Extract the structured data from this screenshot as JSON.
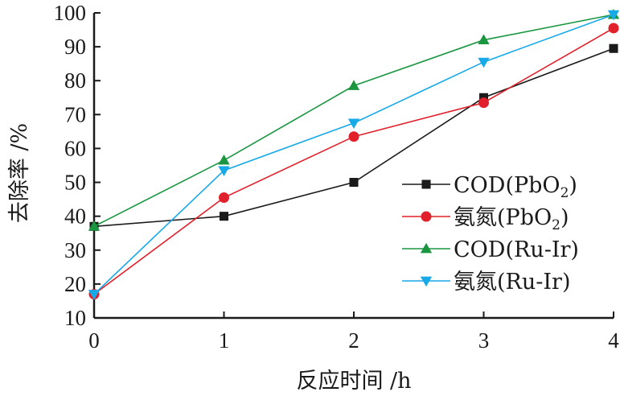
{
  "chart_data": {
    "type": "line",
    "xlabel": "反应时间 /h",
    "ylabel": "去除率 /%",
    "xlim": [
      0,
      4
    ],
    "ylim": [
      10,
      100
    ],
    "x": [
      0,
      1,
      2,
      3,
      4
    ],
    "x_ticks": [
      0,
      1,
      2,
      3,
      4
    ],
    "y_ticks": [
      10,
      20,
      30,
      40,
      50,
      60,
      70,
      80,
      90,
      100
    ],
    "grid": false,
    "legend_position": "bottom-right",
    "series": [
      {
        "name": "COD(PbO2)",
        "label_main": "COD(PbO",
        "label_sub": "2",
        "label_end": ")",
        "color": "#1a1a1a",
        "marker": "square",
        "values": [
          37,
          40,
          50,
          75,
          89.5
        ]
      },
      {
        "name": "氨氮(PbO2)",
        "label_main": "氨氮(PbO",
        "label_sub": "2",
        "label_end": ")",
        "color": "#e0202a",
        "marker": "circle",
        "values": [
          17,
          45.5,
          63.5,
          73.5,
          95.5
        ]
      },
      {
        "name": "COD(Ru-Ir)",
        "label_main": "COD(Ru-Ir)",
        "label_sub": "",
        "label_end": "",
        "color": "#1a9641",
        "marker": "triangle-up",
        "values": [
          37,
          56.5,
          78.5,
          92,
          99.5
        ]
      },
      {
        "name": "氨氮(Ru-Ir)",
        "label_main": "氨氮(Ru-Ir)",
        "label_sub": "",
        "label_end": "",
        "color": "#18a9e8",
        "marker": "triangle-down",
        "values": [
          17,
          53.5,
          67.5,
          85.5,
          99.5
        ]
      }
    ]
  }
}
